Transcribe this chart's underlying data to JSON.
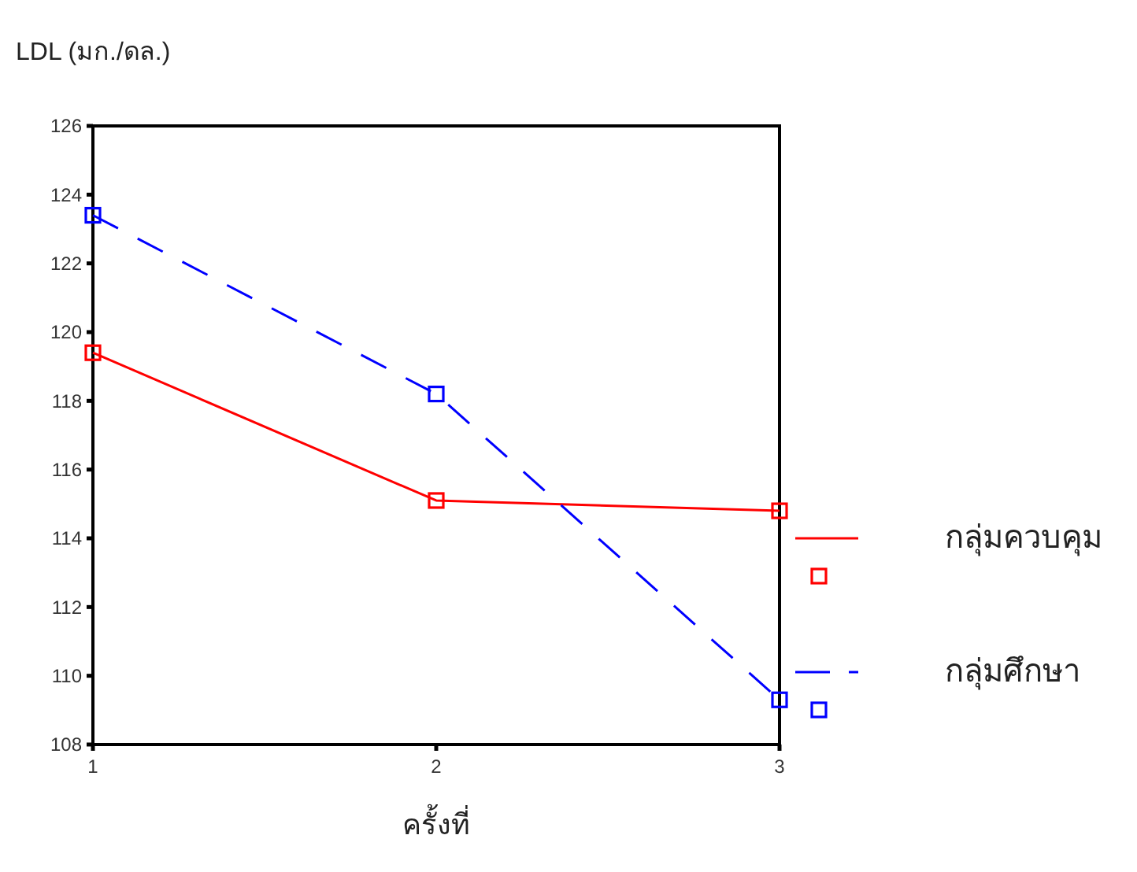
{
  "chart_data": {
    "type": "line",
    "xlabel": "ครั้งที่",
    "ylabel": "LDL (มก./ดล.)",
    "x": [
      1,
      2,
      3
    ],
    "xlim": [
      1,
      3
    ],
    "xticks": [
      1,
      2,
      3
    ],
    "ylim": [
      108,
      126
    ],
    "yticks": [
      108,
      110,
      112,
      114,
      116,
      118,
      120,
      122,
      124,
      126
    ],
    "marker": "square",
    "legend": "right",
    "grid": false,
    "series": [
      {
        "name": "กลุ่มควบคุม",
        "color": "#ff0000",
        "line_style": "solid",
        "values": [
          119.4,
          115.1,
          114.8
        ]
      },
      {
        "name": "กลุ่มศึกษา",
        "color": "#0000ff",
        "line_style": "dashed",
        "values": [
          123.4,
          118.2,
          109.3
        ]
      }
    ]
  }
}
